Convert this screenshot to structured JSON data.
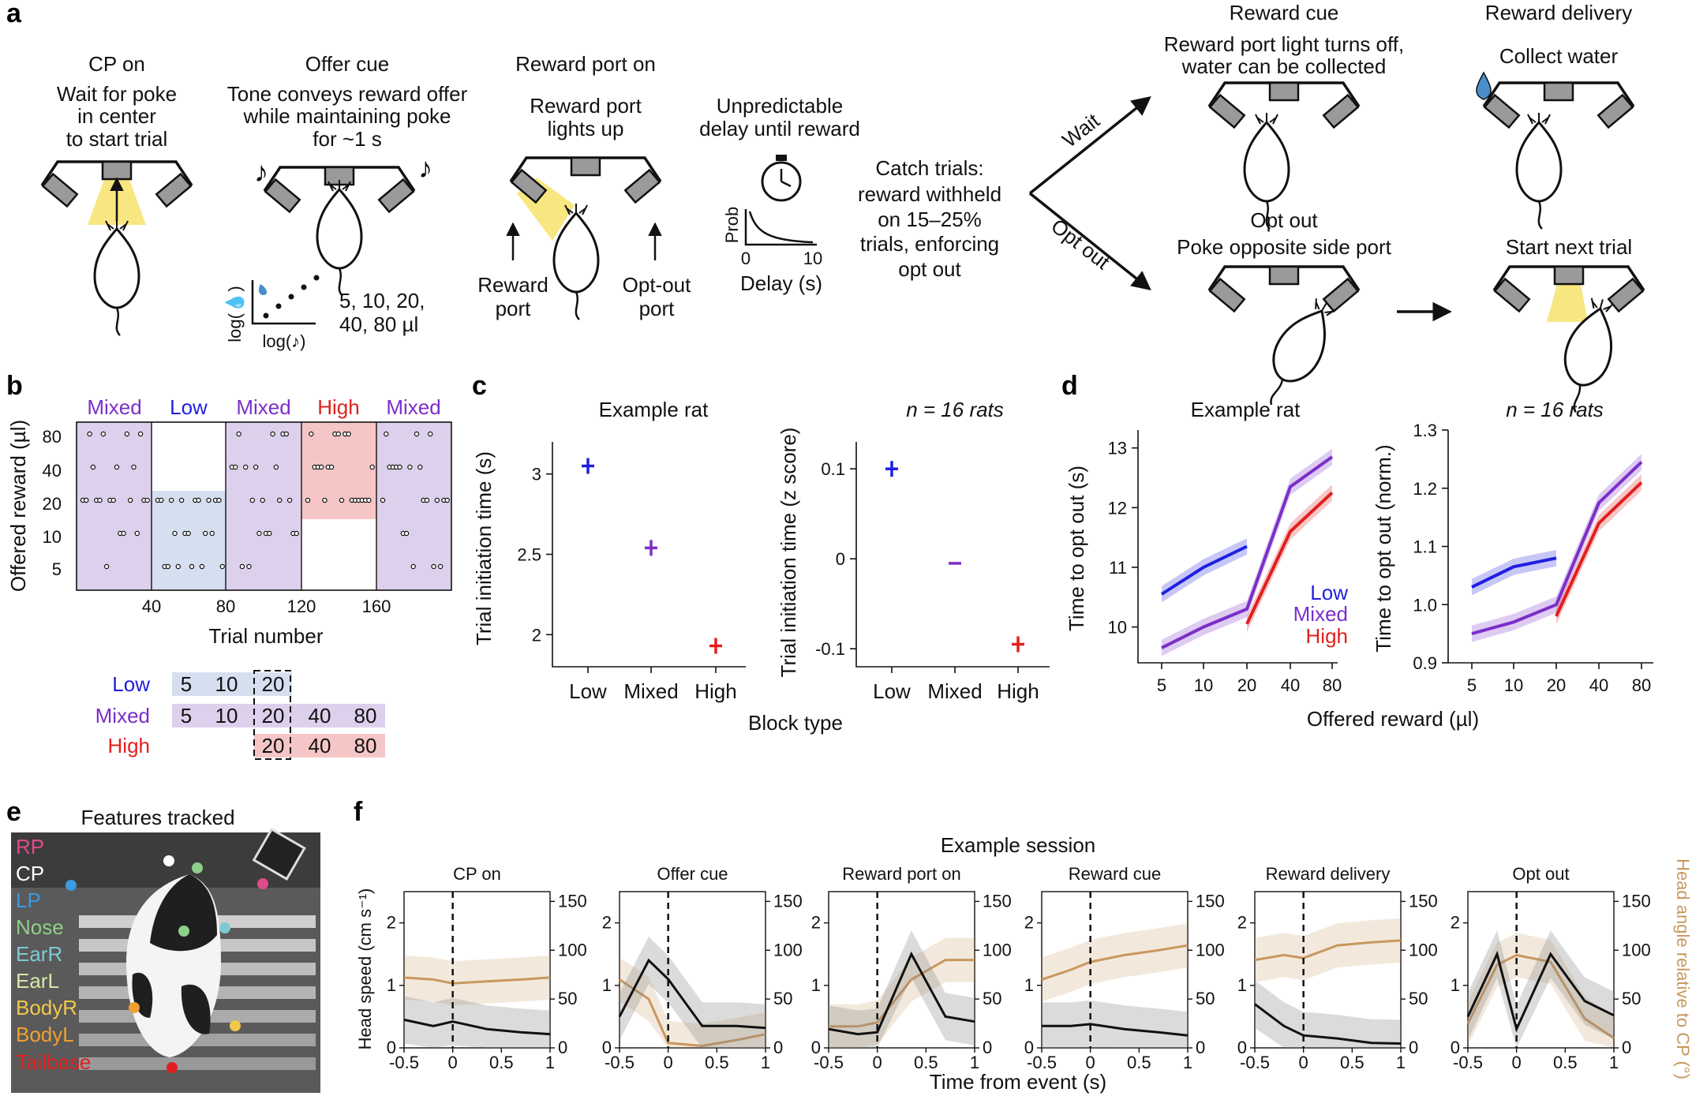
{
  "panel_letters": {
    "a": "a",
    "b": "b",
    "c": "c",
    "d": "d",
    "e": "e",
    "f": "f"
  },
  "panel_a": {
    "cp_on": {
      "title": "CP on",
      "desc": [
        "Wait for poke",
        "in center",
        "to start trial"
      ]
    },
    "offer_cue": {
      "title": "Offer cue",
      "desc": [
        "Tone conveys reward offer",
        "while maintaining poke",
        "for ~1 s"
      ],
      "volumes": [
        "5, 10, 20,",
        "40, 80 µl"
      ],
      "xlabel": "log(♪)",
      "ylabel": "log(💧)"
    },
    "reward_port_on": {
      "title": "Reward port on",
      "desc": [
        "Reward port",
        "lights up"
      ],
      "reward_port": [
        "Reward",
        "port"
      ],
      "optout_port": [
        "Opt-out",
        "port"
      ]
    },
    "delay": {
      "desc": [
        "Unpredictable",
        "delay until reward"
      ],
      "ylabel": "Prob",
      "xlabel": "Delay (s)",
      "tick0": "0",
      "tick10": "10"
    },
    "catch": {
      "desc": [
        "Catch trials:",
        "reward withheld",
        "on 15–25%",
        "trials, enforcing",
        "opt out"
      ]
    },
    "wait_label": "Wait",
    "optout_label": "Opt out",
    "reward_cue": {
      "title": "Reward cue",
      "desc": [
        "Reward port light turns off,",
        "water can be collected"
      ]
    },
    "reward_delivery": {
      "title": "Reward delivery",
      "desc": [
        "Collect water"
      ]
    },
    "opt_out": {
      "title": "Opt out",
      "desc": [
        "Poke opposite side port"
      ]
    },
    "next_trial": {
      "title": "Start next trial"
    }
  },
  "panel_b": {
    "blocks": [
      "Mixed",
      "Low",
      "Mixed",
      "High",
      "Mixed"
    ],
    "ylabel": "Offered reward (µl)",
    "xlabel": "Trial number",
    "yticks": [
      "80",
      "40",
      "20",
      "10",
      "5"
    ],
    "xticks": [
      "40",
      "80",
      "120",
      "160"
    ],
    "legend": {
      "rows": [
        {
          "label": "Low",
          "values": [
            "5",
            "10",
            "20"
          ]
        },
        {
          "label": "Mixed",
          "values": [
            "5",
            "10",
            "20",
            "40",
            "80"
          ]
        },
        {
          "label": "High",
          "values": [
            "20",
            "40",
            "80"
          ]
        }
      ]
    }
  },
  "colors": {
    "low": "#1f1fe0",
    "mixed": "#7b2fc9",
    "high": "#e0201f",
    "low_bg": "#d6dff0",
    "mixed_bg": "#ddd0ec",
    "high_bg": "#f6c6c6",
    "light": "#f7e26b",
    "tan": "#c9975e"
  },
  "chart_data": [
    {
      "id": "c_example",
      "type": "scatter",
      "title": "Example rat",
      "ylabel": "Trial initiation time (s)",
      "categories": [
        "Low",
        "Mixed",
        "High"
      ],
      "values": [
        3.05,
        2.54,
        1.93
      ],
      "yticks": [
        "3",
        "2.5",
        "2"
      ],
      "ylim": [
        1.8,
        3.2
      ]
    },
    {
      "id": "c_population",
      "type": "scatter",
      "title": "n = 16 rats",
      "ylabel": "Trial initiation time (z score)",
      "categories": [
        "Low",
        "Mixed",
        "High"
      ],
      "values": [
        0.1,
        -0.005,
        -0.095
      ],
      "yticks": [
        "0.1",
        "0",
        "-0.1"
      ],
      "ylim": [
        -0.12,
        0.13
      ],
      "xlabel": "Block type"
    },
    {
      "id": "d_example",
      "type": "line",
      "title": "Example rat",
      "ylabel": "Time to opt out (s)",
      "categories": [
        "5",
        "10",
        "20",
        "40",
        "80"
      ],
      "yticks": [
        "13",
        "12",
        "11",
        "10"
      ],
      "ylim": [
        9.4,
        13.3
      ],
      "series": [
        {
          "name": "Low",
          "values": [
            10.55,
            11.0,
            11.35,
            null,
            null
          ]
        },
        {
          "name": "Mixed",
          "values": [
            9.65,
            10.0,
            10.3,
            12.35,
            12.85
          ]
        },
        {
          "name": "High",
          "values": [
            null,
            null,
            10.05,
            11.6,
            12.25
          ]
        }
      ],
      "legend": [
        "Low",
        "Mixed",
        "High"
      ]
    },
    {
      "id": "d_population",
      "type": "line",
      "title": "n = 16 rats",
      "ylabel": "Time to opt out (norm.)",
      "categories": [
        "5",
        "10",
        "20",
        "40",
        "80"
      ],
      "yticks": [
        "1.3",
        "1.2",
        "1.1",
        "1.0",
        "0.9"
      ],
      "ylim": [
        0.9,
        1.3
      ],
      "xlabel": "Offered reward (µl)",
      "series": [
        {
          "name": "Low",
          "values": [
            1.03,
            1.065,
            1.08,
            null,
            null
          ]
        },
        {
          "name": "Mixed",
          "values": [
            0.95,
            0.97,
            1.0,
            1.175,
            1.245
          ]
        },
        {
          "name": "High",
          "values": [
            null,
            null,
            0.98,
            1.14,
            1.21
          ]
        }
      ]
    },
    {
      "id": "f_session",
      "type": "line",
      "title": "Example session",
      "xlabel": "Time from event (s)",
      "ylabel_left": "Head speed (cm s⁻¹)",
      "ylabel_right": "Head angle relative to CP (°)",
      "xticks": [
        "-0.5",
        "0",
        "0.5",
        "1"
      ],
      "yticks_left": [
        "0",
        "1",
        "2"
      ],
      "yticks_right": [
        "0",
        "50",
        "100",
        "150"
      ],
      "panels": [
        {
          "title": "CP on",
          "speed": [
            0.45,
            0.35,
            0.42,
            0.3,
            0.25,
            0.22
          ],
          "angle": [
            72,
            70,
            66,
            68,
            70,
            72
          ]
        },
        {
          "title": "Offer cue",
          "speed": [
            0.5,
            1.4,
            1.1,
            0.35,
            0.35,
            0.32
          ],
          "angle": [
            70,
            50,
            5,
            2,
            8,
            14
          ]
        },
        {
          "title": "Reward port on",
          "speed": [
            0.3,
            0.22,
            0.25,
            1.5,
            0.5,
            0.42
          ],
          "angle": [
            22,
            22,
            26,
            70,
            90,
            90
          ]
        },
        {
          "title": "Reward cue",
          "speed": [
            0.35,
            0.35,
            0.38,
            0.3,
            0.25,
            0.2
          ],
          "angle": [
            70,
            80,
            88,
            95,
            100,
            105
          ]
        },
        {
          "title": "Reward delivery",
          "speed": [
            0.7,
            0.35,
            0.2,
            0.15,
            0.08,
            0.07
          ],
          "angle": [
            90,
            95,
            92,
            105,
            108,
            110
          ]
        },
        {
          "title": "Opt out",
          "speed": [
            0.5,
            1.5,
            0.3,
            1.5,
            0.75,
            0.52
          ],
          "angle": [
            25,
            85,
            95,
            88,
            30,
            10
          ]
        }
      ]
    }
  ],
  "panel_e": {
    "title": "Features tracked",
    "features": [
      {
        "name": "RP",
        "color": "#e04a8c"
      },
      {
        "name": "CP",
        "color": "#ffffff"
      },
      {
        "name": "LP",
        "color": "#3a9be0"
      },
      {
        "name": "Nose",
        "color": "#8ed08a"
      },
      {
        "name": "EarR",
        "color": "#7fc9d6"
      },
      {
        "name": "EarL",
        "color": "#d8e8a8"
      },
      {
        "name": "BodyR",
        "color": "#f2c84a"
      },
      {
        "name": "BodyL",
        "color": "#f0a030"
      },
      {
        "name": "Tailbase",
        "color": "#e02020"
      }
    ]
  }
}
